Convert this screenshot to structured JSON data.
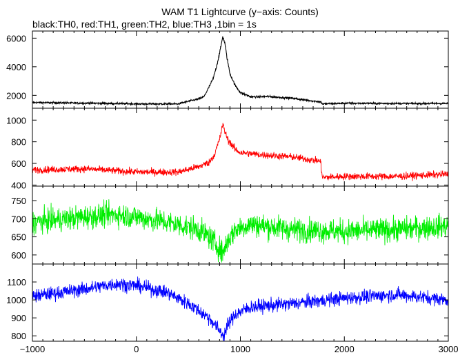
{
  "title": "WAM T1 Lightcurve (y−axis: Counts)",
  "subtitle": "black:TH0, red:TH1, green:TH2, blue:TH3 ,1bin = 1s",
  "chart_data": {
    "type": "line",
    "title": "WAM T1 Lightcurve (y−axis: Counts)",
    "subtitle": "black:TH0, red:TH1, green:TH2, blue:TH3 ,1bin = 1s",
    "xlabel": "",
    "xlim": [
      -1000,
      3000
    ],
    "xticks": [
      -1000,
      0,
      1000,
      2000,
      3000
    ],
    "xtick_labels": [
      "−1000",
      "0",
      "1000",
      "2000",
      "3000"
    ],
    "grid": false,
    "legend": "none",
    "panels": [
      {
        "name": "TH0",
        "color": "#000000",
        "ylim": [
          1100,
          6500
        ],
        "yticks": [
          2000,
          4000,
          6000
        ],
        "ytick_labels": [
          "2000",
          "4000",
          "6000"
        ],
        "noise": 70,
        "x": [
          -1000,
          -200,
          0,
          400,
          480,
          600,
          650,
          700,
          740,
          780,
          810,
          830,
          850,
          870,
          900,
          950,
          1000,
          1100,
          1200,
          1250,
          1300,
          1500,
          1700,
          1770,
          1790,
          2000,
          2500,
          3000
        ],
        "y": [
          1500,
          1430,
          1400,
          1400,
          1550,
          1750,
          1900,
          2600,
          3200,
          4300,
          5300,
          6100,
          5700,
          4700,
          3500,
          2700,
          2200,
          1900,
          1900,
          1930,
          1900,
          1800,
          1600,
          1550,
          1400,
          1450,
          1430,
          1430
        ]
      },
      {
        "name": "TH1",
        "color": "#ff0000",
        "ylim": [
          390,
          1110
        ],
        "yticks": [
          400,
          600,
          800,
          1000
        ],
        "ytick_labels": [
          "400",
          "600",
          "800",
          "1000"
        ],
        "noise": 30,
        "x": [
          -1000,
          -500,
          0,
          400,
          600,
          700,
          750,
          800,
          830,
          850,
          880,
          950,
          1000,
          1200,
          1500,
          1770,
          1790,
          2000,
          2500,
          3000
        ],
        "y": [
          540,
          550,
          520,
          520,
          570,
          610,
          680,
          820,
          960,
          900,
          820,
          730,
          700,
          680,
          660,
          620,
          470,
          480,
          480,
          500
        ]
      },
      {
        "name": "TH2",
        "color": "#00ee00",
        "ylim": [
          575,
          790
        ],
        "yticks": [
          600,
          650,
          700,
          750
        ],
        "ytick_labels": [
          "600",
          "650",
          "700",
          "750"
        ],
        "noise": 30,
        "x": [
          -1000,
          -500,
          -200,
          0,
          300,
          600,
          700,
          780,
          830,
          880,
          950,
          1100,
          1500,
          2000,
          2500,
          3000
        ],
        "y": [
          690,
          705,
          712,
          705,
          690,
          670,
          650,
          625,
          605,
          640,
          670,
          685,
          670,
          665,
          670,
          680
        ]
      },
      {
        "name": "TH3",
        "color": "#0000ff",
        "ylim": [
          770,
          1200
        ],
        "yticks": [
          800,
          900,
          1000,
          1100
        ],
        "ytick_labels": [
          "800",
          "900",
          "1000",
          "1100"
        ],
        "noise": 35,
        "x": [
          -1000,
          -500,
          -200,
          0,
          300,
          500,
          700,
          800,
          840,
          880,
          950,
          1100,
          1500,
          2000,
          2500,
          3000
        ],
        "y": [
          1020,
          1060,
          1090,
          1080,
          1040,
          980,
          900,
          830,
          800,
          860,
          920,
          960,
          980,
          1010,
          1030,
          1000
        ]
      }
    ]
  }
}
